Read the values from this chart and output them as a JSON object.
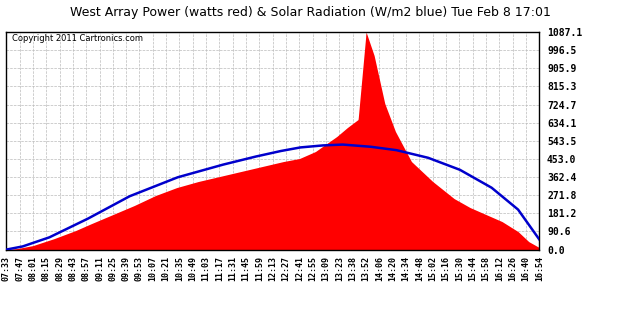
{
  "title": "West Array Power (watts red) & Solar Radiation (W/m2 blue) Tue Feb 8 17:01",
  "copyright": "Copyright 2011 Cartronics.com",
  "background_color": "#ffffff",
  "plot_bg_color": "#ffffff",
  "grid_color": "#bbbbbb",
  "fill_color": "#ff0000",
  "line_color": "#0000cc",
  "ylim": [
    0.0,
    1087.1
  ],
  "yticks": [
    0.0,
    90.6,
    181.2,
    271.8,
    362.4,
    453.0,
    543.5,
    634.1,
    724.7,
    815.3,
    905.9,
    996.5,
    1087.1
  ],
  "x_labels": [
    "07:33",
    "07:47",
    "08:01",
    "08:15",
    "08:29",
    "08:43",
    "08:57",
    "09:11",
    "09:25",
    "09:39",
    "09:53",
    "10:07",
    "10:21",
    "10:35",
    "10:49",
    "11:03",
    "11:17",
    "11:31",
    "11:45",
    "11:59",
    "12:13",
    "12:27",
    "12:41",
    "12:55",
    "13:09",
    "13:23",
    "13:38",
    "13:52",
    "14:06",
    "14:20",
    "14:34",
    "14:48",
    "15:02",
    "15:16",
    "15:30",
    "15:44",
    "15:58",
    "16:12",
    "16:26",
    "16:40",
    "16:54"
  ],
  "power_key_t": [
    0.0,
    0.02,
    0.05,
    0.09,
    0.13,
    0.16,
    0.2,
    0.24,
    0.28,
    0.32,
    0.36,
    0.4,
    0.44,
    0.48,
    0.52,
    0.55,
    0.58,
    0.62,
    0.64,
    0.66,
    0.675,
    0.69,
    0.71,
    0.73,
    0.76,
    0.8,
    0.84,
    0.87,
    0.9,
    0.93,
    0.96,
    0.98,
    1.0
  ],
  "power_key_v": [
    0,
    5,
    20,
    55,
    95,
    130,
    175,
    220,
    270,
    310,
    340,
    365,
    390,
    415,
    440,
    455,
    490,
    565,
    610,
    650,
    1087,
    970,
    730,
    590,
    440,
    340,
    255,
    210,
    175,
    140,
    90,
    40,
    10
  ],
  "solar_key_t": [
    0.0,
    0.03,
    0.08,
    0.15,
    0.23,
    0.32,
    0.4,
    0.46,
    0.51,
    0.55,
    0.59,
    0.63,
    0.68,
    0.73,
    0.79,
    0.85,
    0.91,
    0.96,
    1.0
  ],
  "solar_key_v": [
    0,
    15,
    60,
    150,
    265,
    360,
    420,
    460,
    490,
    510,
    520,
    525,
    515,
    498,
    460,
    400,
    310,
    200,
    50
  ]
}
